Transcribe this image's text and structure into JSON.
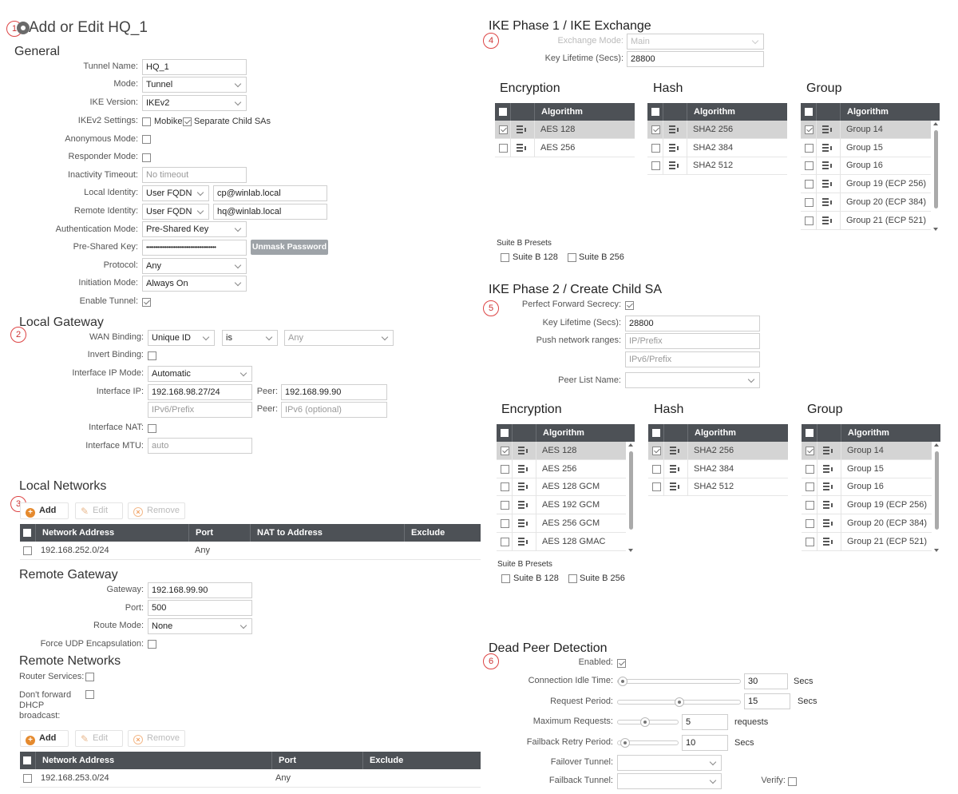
{
  "page": {
    "title": "Add or Edit HQ_1"
  },
  "badges": [
    "1",
    "2",
    "3",
    "4",
    "5",
    "6"
  ],
  "general": {
    "heading": "General",
    "tunnel_name_label": "Tunnel Name:",
    "tunnel_name": "HQ_1",
    "mode_label": "Mode:",
    "mode": "Tunnel",
    "ike_version_label": "IKE Version:",
    "ike_version": "IKEv2",
    "ikev2_settings_label": "IKEv2 Settings:",
    "mobike": "Mobike",
    "separate_child": "Separate Child SAs",
    "anonymous_label": "Anonymous Mode:",
    "responder_label": "Responder Mode:",
    "inactivity_label": "Inactivity Timeout:",
    "inactivity_placeholder": "No timeout",
    "local_identity_label": "Local Identity:",
    "local_identity_type": "User FQDN",
    "local_identity": "cp@winlab.local",
    "remote_identity_label": "Remote Identity:",
    "remote_identity_type": "User FQDN",
    "remote_identity": "hq@winlab.local",
    "auth_mode_label": "Authentication Mode:",
    "auth_mode": "Pre-Shared Key",
    "psk_label": "Pre-Shared Key:",
    "psk": "••••••••••••••••••••••••••••••••••••••",
    "unmask_button": "Unmask Password",
    "protocol_label": "Protocol:",
    "protocol": "Any",
    "initiation_label": "Initiation Mode:",
    "initiation": "Always On",
    "enable_label": "Enable Tunnel:"
  },
  "local_gateway": {
    "heading": "Local Gateway",
    "wan_binding_label": "WAN Binding:",
    "wan_binding": "Unique ID",
    "wan_op": "is",
    "wan_value": "Any",
    "invert_label": "Invert Binding:",
    "ip_mode_label": "Interface IP Mode:",
    "ip_mode": "Automatic",
    "interface_ip_label": "Interface IP:",
    "interface_ip": "192.168.98.27/24",
    "peer_label": "Peer:",
    "peer": "192.168.99.90",
    "ipv6_placeholder": "IPv6/Prefix",
    "peer_v6_placeholder": "IPv6 (optional)",
    "nat_label": "Interface NAT:",
    "mtu_label": "Interface MTU:",
    "mtu_placeholder": "auto"
  },
  "local_networks": {
    "heading": "Local Networks",
    "add": "Add",
    "edit": "Edit",
    "remove": "Remove",
    "columns": [
      "Network Address",
      "Port",
      "NAT to Address",
      "Exclude"
    ],
    "rows": [
      {
        "address": "192.168.252.0/24",
        "port": "Any"
      }
    ]
  },
  "remote_gateway": {
    "heading": "Remote Gateway",
    "gateway_label": "Gateway:",
    "gateway": "192.168.99.90",
    "port_label": "Port:",
    "port": "500",
    "route_label": "Route Mode:",
    "route": "None",
    "udp_label": "Force UDP Encapsulation:"
  },
  "remote_networks": {
    "heading": "Remote Networks",
    "router_label": "Router Services:",
    "dhcp_label_1": "Don't forward",
    "dhcp_label_2": "DHCP",
    "dhcp_label_3": "broadcast:",
    "add": "Add",
    "edit": "Edit",
    "remove": "Remove",
    "columns": [
      "Network Address",
      "Port",
      "Exclude"
    ],
    "rows": [
      {
        "address": "192.168.253.0/24",
        "port": "Any"
      }
    ]
  },
  "phase1": {
    "heading": "IKE Phase 1 / IKE Exchange",
    "exchange_label": "Exchange Mode:",
    "exchange": "Main",
    "lifetime_label": "Key Lifetime (Secs):",
    "lifetime": "28800",
    "enc_heading": "Encryption",
    "hash_heading": "Hash",
    "group_heading": "Group",
    "alg_col": "Algorithm",
    "encryption": [
      "AES 128",
      "AES 256"
    ],
    "hash": [
      "SHA2 256",
      "SHA2 384",
      "SHA2 512"
    ],
    "groups": [
      "Group 14",
      "Group 15",
      "Group 16",
      "Group 19 (ECP 256)",
      "Group 20 (ECP 384)",
      "Group 21 (ECP 521)"
    ],
    "suite_label": "Suite B Presets",
    "suite_128": "Suite B 128",
    "suite_256": "Suite B 256"
  },
  "phase2": {
    "heading": "IKE Phase 2 / Create Child SA",
    "pfs_label": "Perfect Forward Secrecy:",
    "lifetime_label": "Key Lifetime (Secs):",
    "lifetime": "28800",
    "push_label": "Push network ranges:",
    "push_placeholder": "IP/Prefix",
    "push_v6_placeholder": "IPv6/Prefix",
    "peer_list_label": "Peer List Name:",
    "enc_heading": "Encryption",
    "hash_heading": "Hash",
    "group_heading": "Group",
    "alg_col": "Algorithm",
    "encryption": [
      "AES 128",
      "AES 256",
      "AES 128 GCM",
      "AES 192 GCM",
      "AES 256 GCM",
      "AES 128 GMAC"
    ],
    "hash": [
      "SHA2 256",
      "SHA2 384",
      "SHA2 512"
    ],
    "groups": [
      "Group 14",
      "Group 15",
      "Group 16",
      "Group 19 (ECP 256)",
      "Group 20 (ECP 384)",
      "Group 21 (ECP 521)"
    ],
    "suite_label": "Suite B Presets",
    "suite_128": "Suite B 128",
    "suite_256": "Suite B 256"
  },
  "dpd": {
    "heading": "Dead Peer Detection",
    "enabled_label": "Enabled:",
    "idle_label": "Connection Idle Time:",
    "idle": "30",
    "idle_unit": "Secs",
    "idle_level": 0.0,
    "request_label": "Request Period:",
    "request": "15",
    "request_unit": "Secs",
    "request_level": 0.5,
    "max_label": "Maximum Requests:",
    "max": "5",
    "max_unit": "requests",
    "max_level": 0.45,
    "failback_label": "Failback Retry Period:",
    "failback": "10",
    "failback_unit": "Secs",
    "failback_level": 0.05,
    "failover_label": "Failover Tunnel:",
    "failback_tunnel_label": "Failback Tunnel:",
    "verify_label": "Verify:"
  }
}
